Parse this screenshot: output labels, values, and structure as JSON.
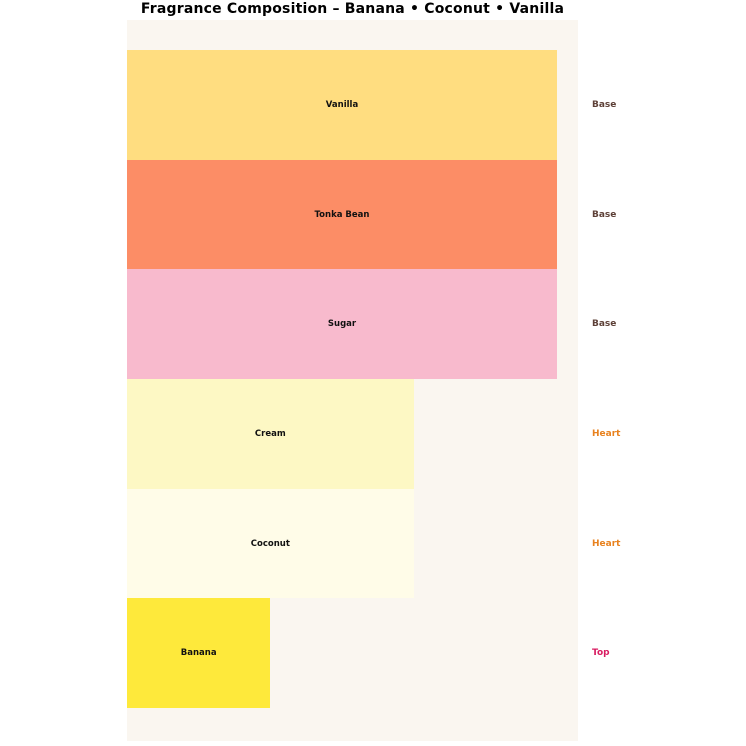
{
  "title": "Fragrance Composition – Banana • Coconut • Vanilla",
  "chart_data": {
    "type": "bar",
    "orientation": "horizontal",
    "title": "Fragrance Composition – Banana • Coconut • Vanilla",
    "categories": [
      "Vanilla",
      "Tonka Bean",
      "Sugar",
      "Cream",
      "Coconut",
      "Banana"
    ],
    "values": [
      3,
      3,
      3,
      2,
      2,
      1
    ],
    "value_max": 3,
    "xlim": [
      0,
      3
    ],
    "grid": false,
    "axes_visible": false,
    "legend": "none",
    "notes": [
      {
        "label": "Vanilla",
        "tier": "Base",
        "value": 3,
        "color": "#FFDD80",
        "tier_color": "#5D4037"
      },
      {
        "label": "Tonka Bean",
        "tier": "Base",
        "value": 3,
        "color": "#FC8D66",
        "tier_color": "#5D4037"
      },
      {
        "label": "Sugar",
        "tier": "Base",
        "value": 3,
        "color": "#F8BACD",
        "tier_color": "#5D4037"
      },
      {
        "label": "Cream",
        "tier": "Heart",
        "value": 2,
        "color": "#FDF8C4",
        "tier_color": "#E8821F"
      },
      {
        "label": "Coconut",
        "tier": "Heart",
        "value": 2,
        "color": "#FFFCE8",
        "tier_color": "#E8821F"
      },
      {
        "label": "Banana",
        "tier": "Top",
        "value": 1,
        "color": "#FEE93B",
        "tier_color": "#D81B60"
      }
    ],
    "colors": {
      "plot_background": "#FAF6F0",
      "page_background": "#FFFFFF",
      "bar_label": "#111111",
      "title": "#000000"
    }
  }
}
